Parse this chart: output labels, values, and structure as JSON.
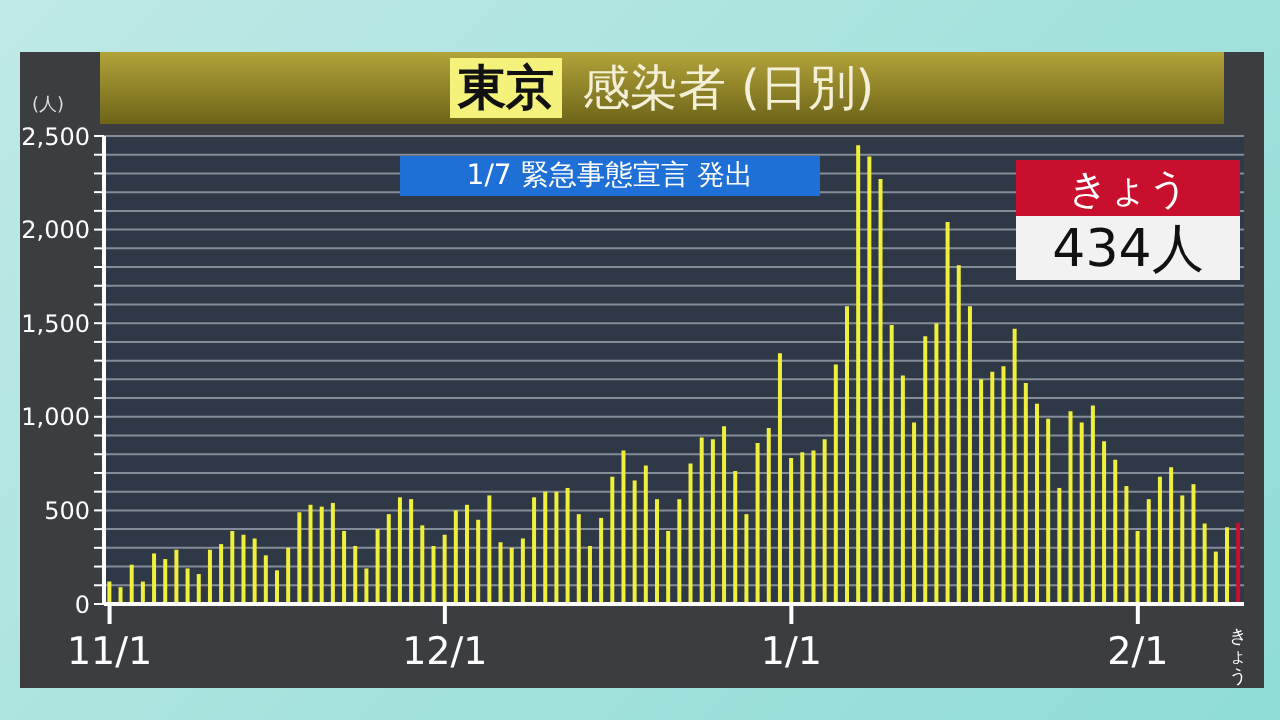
{
  "chart_data": {
    "type": "bar",
    "title": "東京",
    "subtitle": "感染者 (日別)",
    "ylabel": "(人)",
    "categories": [
      "11/1",
      null,
      null,
      null,
      null,
      null,
      null,
      null,
      null,
      null,
      null,
      null,
      null,
      null,
      null,
      null,
      null,
      null,
      null,
      null,
      null,
      null,
      null,
      null,
      null,
      null,
      null,
      null,
      null,
      null,
      "12/1",
      null,
      null,
      null,
      null,
      null,
      null,
      null,
      null,
      null,
      null,
      null,
      null,
      null,
      null,
      null,
      null,
      null,
      null,
      null,
      null,
      null,
      null,
      null,
      null,
      null,
      null,
      null,
      null,
      null,
      null,
      "1/1",
      null,
      null,
      null,
      null,
      null,
      null,
      null,
      null,
      null,
      null,
      null,
      null,
      null,
      null,
      null,
      null,
      null,
      null,
      null,
      null,
      null,
      null,
      null,
      null,
      null,
      null,
      null,
      null,
      null,
      null,
      "2/1",
      null,
      null,
      null,
      null,
      null,
      null,
      null,
      null,
      "きょう"
    ],
    "values": [
      120,
      90,
      210,
      120,
      270,
      240,
      290,
      190,
      160,
      290,
      320,
      390,
      370,
      350,
      260,
      180,
      300,
      490,
      530,
      520,
      540,
      390,
      310,
      190,
      400,
      480,
      570,
      560,
      420,
      310,
      370,
      500,
      530,
      450,
      580,
      330,
      300,
      350,
      570,
      600,
      600,
      620,
      480,
      310,
      460,
      680,
      820,
      660,
      740,
      560,
      390,
      560,
      750,
      890,
      880,
      950,
      710,
      480,
      860,
      940,
      1340,
      780,
      810,
      820,
      880,
      1280,
      1590,
      2450,
      2390,
      2270,
      1490,
      1220,
      970,
      1430,
      1500,
      2040,
      1810,
      1590,
      1200,
      1240,
      1270,
      1470,
      1180,
      1070,
      990,
      620,
      1030,
      970,
      1060,
      870,
      770,
      630,
      390,
      560,
      680,
      730,
      580,
      640,
      430,
      280,
      410,
      434
    ],
    "colors": [
      "#f0f03c",
      "#f0f03c",
      "#f0f03c",
      "#f0f03c",
      "#f0f03c",
      "#f0f03c",
      "#f0f03c",
      "#f0f03c",
      "#f0f03c",
      "#f0f03c",
      "#f0f03c",
      "#f0f03c",
      "#f0f03c",
      "#f0f03c",
      "#f0f03c",
      "#f0f03c",
      "#f0f03c",
      "#f0f03c",
      "#f0f03c",
      "#f0f03c",
      "#f0f03c",
      "#f0f03c",
      "#f0f03c",
      "#f0f03c",
      "#f0f03c",
      "#f0f03c",
      "#f0f03c",
      "#f0f03c",
      "#f0f03c",
      "#f0f03c",
      "#f0f03c",
      "#f0f03c",
      "#f0f03c",
      "#f0f03c",
      "#f0f03c",
      "#f0f03c",
      "#f0f03c",
      "#f0f03c",
      "#f0f03c",
      "#f0f03c",
      "#f0f03c",
      "#f0f03c",
      "#f0f03c",
      "#f0f03c",
      "#f0f03c",
      "#f0f03c",
      "#f0f03c",
      "#f0f03c",
      "#f0f03c",
      "#f0f03c",
      "#f0f03c",
      "#f0f03c",
      "#f0f03c",
      "#f0f03c",
      "#f0f03c",
      "#f0f03c",
      "#f0f03c",
      "#f0f03c",
      "#f0f03c",
      "#f0f03c",
      "#f0f03c",
      "#f0f03c",
      "#f0f03c",
      "#f0f03c",
      "#f0f03c",
      "#f0f03c",
      "#f0f03c",
      "#f0f03c",
      "#f0f03c",
      "#f0f03c",
      "#f0f03c",
      "#f0f03c",
      "#f0f03c",
      "#f0f03c",
      "#f0f03c",
      "#f0f03c",
      "#f0f03c",
      "#f0f03c",
      "#f0f03c",
      "#f0f03c",
      "#f0f03c",
      "#f0f03c",
      "#f0f03c",
      "#f0f03c",
      "#f0f03c",
      "#f0f03c",
      "#f0f03c",
      "#f0f03c",
      "#f0f03c",
      "#f0f03c",
      "#f0f03c",
      "#f0f03c",
      "#f0f03c",
      "#f0f03c",
      "#f0f03c",
      "#f0f03c",
      "#f0f03c",
      "#f0f03c",
      "#f0f03c",
      "#f0f03c",
      "#f0f03c",
      "#c8102e"
    ],
    "ylim": [
      0,
      2500
    ],
    "yticks": [
      {
        "value": 0,
        "label": "0"
      },
      {
        "value": 100,
        "label": null
      },
      {
        "value": 200,
        "label": null
      },
      {
        "value": 300,
        "label": null
      },
      {
        "value": 400,
        "label": null
      },
      {
        "value": 500,
        "label": "500"
      },
      {
        "value": 600,
        "label": null
      },
      {
        "value": 700,
        "label": null
      },
      {
        "value": 800,
        "label": null
      },
      {
        "value": 900,
        "label": null
      },
      {
        "value": 1000,
        "label": "1,000"
      },
      {
        "value": 1100,
        "label": null
      },
      {
        "value": 1200,
        "label": null
      },
      {
        "value": 1300,
        "label": null
      },
      {
        "value": 1400,
        "label": null
      },
      {
        "value": 1500,
        "label": "1,500"
      },
      {
        "value": 1600,
        "label": null
      },
      {
        "value": 1700,
        "label": null
      },
      {
        "value": 1800,
        "label": null
      },
      {
        "value": 1900,
        "label": null
      },
      {
        "value": 2000,
        "label": "2,000"
      },
      {
        "value": 2100,
        "label": null
      },
      {
        "value": 2200,
        "label": null
      },
      {
        "value": 2300,
        "label": null
      },
      {
        "value": 2400,
        "label": null
      },
      {
        "value": 2500,
        "label": "2,500"
      }
    ],
    "grid": "y",
    "annotations": [
      "1/7 緊急事態宣言 発出",
      "きょう",
      "434人"
    ]
  }
}
